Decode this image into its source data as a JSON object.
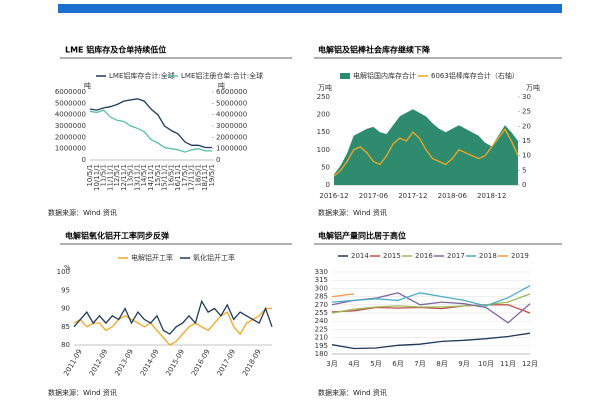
{
  "chart_data": [
    {
      "type": "line",
      "title": "LME 铝库存及仓单持续低位",
      "source": "数据来源：Wind 资讯",
      "ylabel": "吨",
      "y2label": "吨",
      "categories": [
        "10/5/1",
        "10/11/1",
        "11/5/1",
        "11/11/1",
        "12/5/1",
        "12/11/1",
        "13/5/1",
        "13/11/1",
        "14/5/1",
        "14/11/1",
        "15/5/1",
        "15/11/1",
        "16/5/1",
        "16/11/1",
        "17/5/1",
        "17/11/1",
        "18/5/1",
        "18/11/1",
        "19/5/1"
      ],
      "series": [
        {
          "name": "LME铝库存合计:全球",
          "color": "#1f3a5a",
          "type": "line",
          "values": [
            4500000,
            4400000,
            4600000,
            4700000,
            4900000,
            5200000,
            5300000,
            5400000,
            5200000,
            4500000,
            4000000,
            3000000,
            2600000,
            2300000,
            1600000,
            1300000,
            1300000,
            1100000,
            1100000
          ]
        },
        {
          "name": "LME铝注册仓单:合计:全球",
          "color": "#5bbfa5",
          "type": "line",
          "axis": "y2",
          "values": [
            4300000,
            4200000,
            4400000,
            3800000,
            3500000,
            3400000,
            3000000,
            2800000,
            2500000,
            1800000,
            1500000,
            1100000,
            1000000,
            900000,
            700000,
            900000,
            1000000,
            800000,
            800000
          ]
        }
      ],
      "ylim": [
        0,
        6000000
      ],
      "yticks": [
        0,
        1000000,
        2000000,
        3000000,
        4000000,
        5000000,
        6000000
      ],
      "y2lim": [
        0,
        6000000
      ],
      "y2ticks": [
        0,
        1000000,
        2000000,
        3000000,
        4000000,
        5000000,
        6000000
      ]
    },
    {
      "type": "area",
      "title": "电解铝及铝棒社会库存继续下降",
      "source": "数据来源：Wind 资讯",
      "ylabel": "万吨",
      "y2label": "万吨",
      "categories": [
        "2016-12",
        null,
        null,
        null,
        null,
        null,
        "2017-06",
        null,
        null,
        null,
        null,
        null,
        "2017-12",
        null,
        null,
        null,
        null,
        null,
        "2018-06",
        null,
        null,
        null,
        null,
        null,
        "2018-12",
        null,
        null,
        null,
        null
      ],
      "series": [
        {
          "name": "电解铝国内库存合计",
          "color": "#2e8b6e",
          "type": "area",
          "values": [
            30,
            55,
            90,
            140,
            150,
            160,
            165,
            150,
            145,
            170,
            195,
            205,
            215,
            205,
            195,
            175,
            160,
            150,
            160,
            170,
            160,
            150,
            140,
            120,
            110,
            140,
            170,
            150,
            125
          ]
        },
        {
          "name": "6063铝棒库存合计（右轴）",
          "color": "#f5a623",
          "type": "line",
          "axis": "y2",
          "values": [
            3,
            5,
            8,
            12,
            13,
            11,
            8,
            7,
            10,
            14,
            16,
            15,
            18,
            16,
            12,
            9,
            8,
            7,
            9,
            12,
            11,
            10,
            9,
            10,
            13,
            16,
            19,
            15,
            10
          ]
        }
      ],
      "ylim": [
        0,
        250
      ],
      "yticks": [
        0,
        50,
        100,
        150,
        200,
        250
      ],
      "y2lim": [
        0,
        30
      ],
      "y2ticks": [
        0,
        5,
        10,
        15,
        20,
        25,
        30
      ]
    },
    {
      "type": "line",
      "title": "电解铝氧化铝开工率同步反弹",
      "source": "数据来源：Wind 资讯",
      "ylabel": "%",
      "categories": [
        null,
        "2011-09",
        null,
        null,
        null,
        "2012-09",
        null,
        null,
        null,
        "2013-09",
        null,
        null,
        null,
        "2014-09",
        null,
        null,
        null,
        "2015-09",
        null,
        null,
        null,
        "2016-09",
        null,
        null,
        null,
        "2017-09",
        null,
        null,
        null,
        "2018-09",
        null,
        null
      ],
      "series": [
        {
          "name": "电解铝开工率",
          "color": "#f5a623",
          "type": "line",
          "values": [
            86,
            87,
            85,
            86,
            86,
            84,
            85,
            87,
            88,
            87,
            86,
            85,
            86,
            84,
            82,
            80,
            81,
            83,
            85,
            86,
            85,
            84,
            86,
            88,
            89,
            85,
            83,
            86,
            87,
            88,
            90,
            90
          ]
        },
        {
          "name": "氧化铝开工率",
          "color": "#1f3a5a",
          "type": "line",
          "values": [
            85,
            87,
            89,
            86,
            88,
            86,
            88,
            87,
            90,
            86,
            89,
            87,
            86,
            88,
            84,
            83,
            85,
            86,
            88,
            86,
            92,
            89,
            90,
            88,
            91,
            87,
            89,
            88,
            87,
            86,
            90,
            85
          ]
        }
      ],
      "ylim": [
        80,
        100
      ],
      "yticks": [
        80,
        85,
        90,
        95,
        100
      ]
    },
    {
      "type": "line",
      "title": "电解铝产量同比居于高位",
      "source": "数据来源：Wind 资讯",
      "categories": [
        "3月",
        "4月",
        "5月",
        "6月",
        "7月",
        "8月",
        "9月",
        "10月",
        "11月",
        "12月"
      ],
      "series": [
        {
          "name": "2014",
          "color": "#1f3a5a",
          "type": "line",
          "values": [
            197,
            190,
            191,
            196,
            198,
            203,
            205,
            208,
            212,
            218
          ]
        },
        {
          "name": "2015",
          "color": "#c0504d",
          "type": "line",
          "values": [
            257,
            259,
            265,
            264,
            265,
            263,
            268,
            270,
            270,
            255
          ]
        },
        {
          "name": "2016",
          "color": "#9bbb59",
          "type": "line",
          "values": [
            255,
            262,
            266,
            268,
            266,
            266,
            268,
            270,
            275,
            290
          ]
        },
        {
          "name": "2017",
          "color": "#8064a2",
          "type": "line",
          "values": [
            270,
            278,
            282,
            292,
            270,
            275,
            272,
            265,
            237,
            272
          ]
        },
        {
          "name": "2018",
          "color": "#4bacc6",
          "type": "line",
          "values": [
            275,
            278,
            281,
            278,
            292,
            285,
            278,
            268,
            283,
            305
          ]
        },
        {
          "name": "2019",
          "color": "#f79646",
          "type": "line",
          "values": [
            285,
            290,
            null,
            null,
            null,
            null,
            null,
            null,
            null,
            null
          ]
        }
      ],
      "ylim": [
        180,
        330
      ],
      "yticks": [
        180,
        195,
        210,
        225,
        240,
        255,
        270,
        285,
        300,
        315,
        330
      ]
    }
  ]
}
